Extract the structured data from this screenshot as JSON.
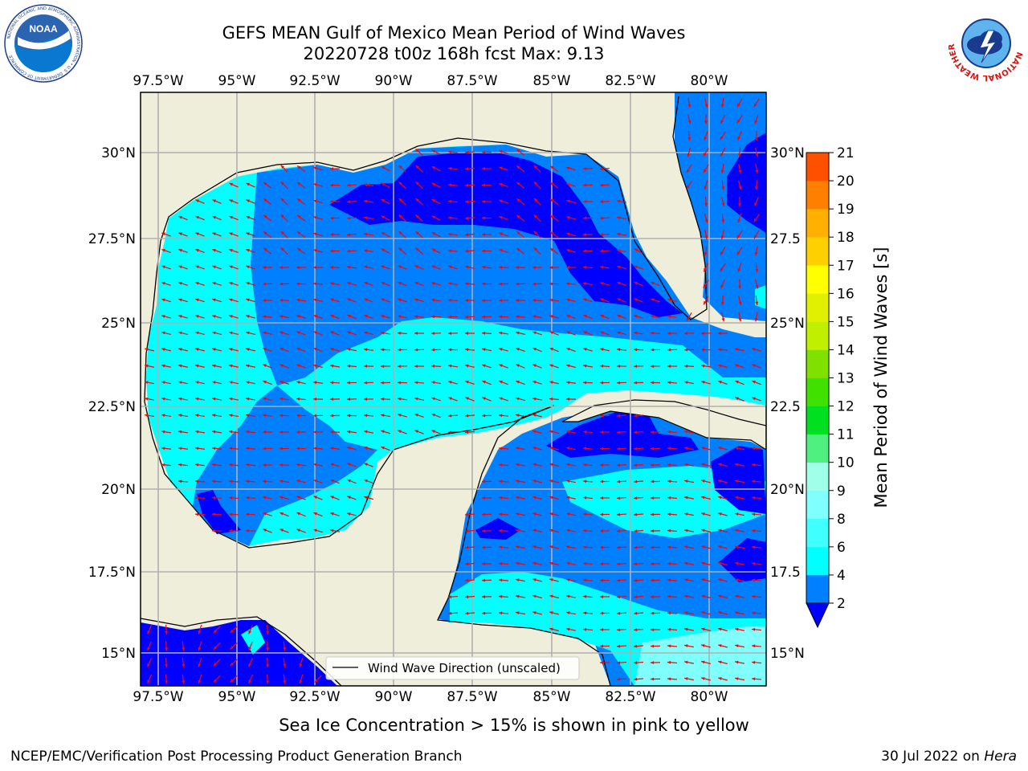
{
  "title_line1": "GEFS MEAN Gulf of Mexico Mean Period of Wind Waves",
  "title_line2": "20220728 t00z 168h fcst   Max: 9.13",
  "lon_labels": [
    "97.5°W",
    "95°W",
    "92.5°W",
    "90°W",
    "87.5°W",
    "85°W",
    "82.5°W",
    "80°W"
  ],
  "lat_labels": [
    "30°N",
    "27.5°N",
    "25°N",
    "22.5°N",
    "20°N",
    "17.5°N",
    "15°N"
  ],
  "right_lat_labels": [
    "30°N",
    "27.5",
    "25°N",
    "22.5",
    "20°N",
    "17.5",
    "15°N"
  ],
  "legend_label": "Wind Wave Direction (unscaled)",
  "colorbar": {
    "label": "Mean Period of Wind Waves [s]",
    "ticks": [
      "2",
      "4",
      "6",
      "8",
      "9",
      "10",
      "11",
      "12",
      "13",
      "14",
      "15",
      "16",
      "17",
      "18",
      "19",
      "20",
      "21"
    ],
    "colors": [
      "#0080ff",
      "#00ffff",
      "#40ffff",
      "#80ffff",
      "#a0ffe8",
      "#50f080",
      "#00e020",
      "#40e000",
      "#80e000",
      "#c0f000",
      "#e0f000",
      "#ffff00",
      "#ffd000",
      "#ffb000",
      "#ff8000",
      "#ff5000",
      "#ff2000"
    ],
    "under_color": "#0000ff"
  },
  "colors": {
    "land": "#efeedb",
    "cat_low": "#0000ff",
    "cat_2_4": "#0080ff",
    "cat_4_6": "#00ffff",
    "cat_6_8": "#80ffff",
    "arrow": "#ff0000",
    "grid": "#b0b0b0"
  },
  "note": "Sea Ice Concentration > 15% is shown in pink to yellow",
  "footer_left": "NCEP/EMC/Verification Post Processing Product Generation Branch",
  "footer_date": "30 Jul 2022 on ",
  "footer_host": "Hera",
  "noaa_logo_text": "NOAA",
  "noaa_logo_ring": "NATIONAL OCEANIC AND ATMOSPHERIC ADMINISTRATION • U.S. DEPARTMENT OF COMMERCE",
  "nws_logo_ring": "NATIONAL WEATHER SERVICE"
}
